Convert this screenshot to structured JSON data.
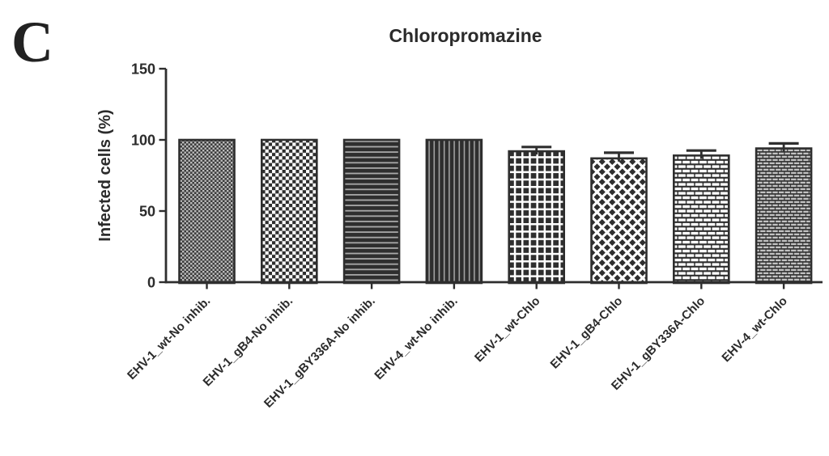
{
  "panel_label": "C",
  "chart_data": {
    "type": "bar",
    "title": "Chloropromazine",
    "ylabel": "Infected cells (%)",
    "xlabel": "",
    "ylim": [
      0,
      150
    ],
    "yticks": [
      0,
      50,
      100,
      150
    ],
    "grid": false,
    "legend": null,
    "categories": [
      "EHV-1_wt-No inhib.",
      "EHV-1_gB4-No inhib.",
      "EHV-1_gBY336A-No inhib.",
      "EHV-4_wt-No inhib.",
      "EHV-1_wt-Chlo",
      "EHV-1_gB4-Chlo",
      "EHV-1_gBY336A-Chlo",
      "EHV-4_wt-Chlo"
    ],
    "values": [
      100,
      100,
      100,
      100,
      92,
      87,
      89,
      94
    ],
    "errors": [
      0,
      0,
      0,
      0,
      3,
      4,
      3.5,
      3.5
    ],
    "patterns": [
      "fine-checker",
      "checker",
      "horizontal-lines",
      "vertical-lines",
      "grid",
      "diamond-lattice",
      "brick-large",
      "brick-small"
    ],
    "bar_color": "#2e2e2e",
    "axis_color": "#2e2e2e",
    "pattern_light_color": "#b8b8b8"
  }
}
